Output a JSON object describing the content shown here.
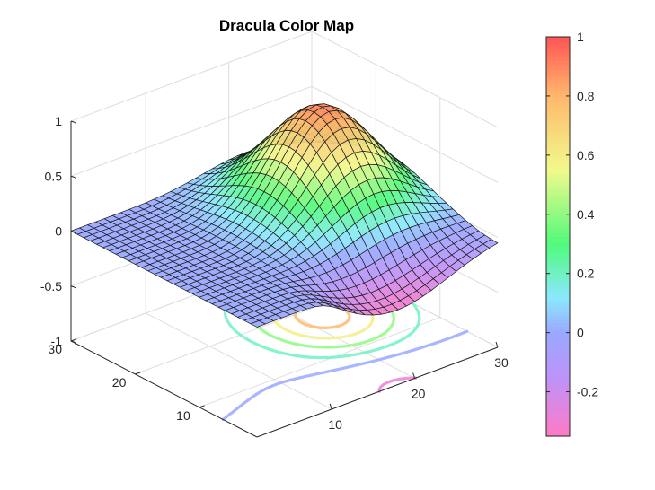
{
  "chart_data": {
    "type": "surface",
    "title": "Dracula Color Map",
    "xlabel": "",
    "ylabel": "",
    "zlabel": "",
    "grid": true,
    "x_ticks": [
      10,
      20,
      30
    ],
    "x_tick_labels": [
      "10",
      "20",
      "30"
    ],
    "y_ticks": [
      10,
      20,
      30
    ],
    "y_tick_labels": [
      "10",
      "20",
      "30"
    ],
    "z_ticks": [
      -1,
      -0.5,
      0,
      0.5,
      1
    ],
    "z_tick_labels": [
      "-1",
      "-0.5",
      "0",
      "0.5",
      "1"
    ],
    "xlim": [
      1,
      30
    ],
    "ylim": [
      1,
      30
    ],
    "zlim": [
      -1,
      1
    ],
    "grid_size": 30,
    "surface": {
      "description": "smooth bump",
      "peak": {
        "x": 22,
        "y": 18,
        "z": 0.9
      },
      "trough_z": -0.35,
      "flat_z": 0
    },
    "contour_levels": [
      -0.3,
      0,
      0.2,
      0.4,
      0.6,
      0.8
    ],
    "colorbar": {
      "limits": [
        -0.35,
        1
      ],
      "ticks": [
        -0.2,
        0,
        0.2,
        0.4,
        0.6,
        0.8,
        1
      ],
      "tick_labels": [
        "-0.2",
        "0",
        "0.2",
        "0.4",
        "0.6",
        "0.8",
        "1"
      ],
      "colormap": [
        {
          "v": -0.35,
          "color": "#ff79c6"
        },
        {
          "v": -0.15,
          "color": "#bd93f9"
        },
        {
          "v": 0.0,
          "color": "#9aa8ff"
        },
        {
          "v": 0.12,
          "color": "#8be9fd"
        },
        {
          "v": 0.3,
          "color": "#50fa7b"
        },
        {
          "v": 0.55,
          "color": "#f1fa8c"
        },
        {
          "v": 0.8,
          "color": "#ffb86c"
        },
        {
          "v": 1.0,
          "color": "#ff5555"
        }
      ],
      "placement": "right"
    }
  }
}
